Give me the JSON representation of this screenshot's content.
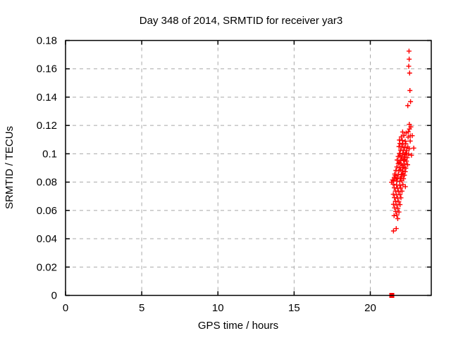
{
  "chart_data": {
    "type": "scatter",
    "title": "Day 348 of 2014, SRMTID for receiver yar3",
    "xlabel": "GPS time / hours",
    "ylabel": "SRMTID / TECUs",
    "xlim": [
      0,
      24
    ],
    "ylim": [
      0,
      0.18
    ],
    "x_tick_values": [
      0,
      5,
      10,
      15,
      20
    ],
    "x_tick_labels": [
      "0",
      "5",
      "10",
      "15",
      "20"
    ],
    "y_tick_values": [
      0,
      0.02,
      0.04,
      0.06,
      0.08,
      0.1,
      0.12,
      0.14,
      0.16,
      0.18
    ],
    "y_tick_labels": [
      "0",
      "0.02",
      "0.04",
      "0.06",
      "0.08",
      "0.1",
      "0.12",
      "0.14",
      "0.16",
      "0.18"
    ],
    "grid": true,
    "grid_style": "dashed",
    "grid_color": "#a8a8a8",
    "border_color": "#000000",
    "marker_color": "#ff0000",
    "legend": "none",
    "series": [
      {
        "name": "srmtid-points",
        "marker": "plus",
        "color": "#ff0000",
        "points": [
          [
            22.54,
            0.1725
          ],
          [
            22.55,
            0.1668
          ],
          [
            22.52,
            0.1618
          ],
          [
            22.58,
            0.157
          ],
          [
            22.6,
            0.1447
          ],
          [
            22.64,
            0.1368
          ],
          [
            22.46,
            0.134
          ],
          [
            22.56,
            0.1208
          ],
          [
            22.66,
            0.119
          ],
          [
            22.57,
            0.1175
          ],
          [
            22.12,
            0.1154
          ],
          [
            22.35,
            0.1147
          ],
          [
            22.49,
            0.1155
          ],
          [
            22.21,
            0.113
          ],
          [
            22.03,
            0.1119
          ],
          [
            22.62,
            0.1127
          ],
          [
            22.75,
            0.1128
          ],
          [
            22.48,
            0.1118
          ],
          [
            21.91,
            0.1097
          ],
          [
            22.1,
            0.1094
          ],
          [
            22.29,
            0.1089
          ],
          [
            22.62,
            0.109
          ],
          [
            21.94,
            0.1073
          ],
          [
            22.14,
            0.1068
          ],
          [
            22.33,
            0.1071
          ],
          [
            21.88,
            0.1051
          ],
          [
            22.06,
            0.1048
          ],
          [
            22.26,
            0.1044
          ],
          [
            22.46,
            0.1048
          ],
          [
            22.85,
            0.104
          ],
          [
            22.55,
            0.1035
          ],
          [
            21.98,
            0.1026
          ],
          [
            22.18,
            0.1023
          ],
          [
            22.37,
            0.1023
          ],
          [
            21.91,
            0.1003
          ],
          [
            22.12,
            0.1
          ],
          [
            22.32,
            0.1001
          ],
          [
            22.51,
            0.0998
          ],
          [
            22.4,
            0.1
          ],
          [
            22.7,
            0.099
          ],
          [
            21.95,
            0.099
          ],
          [
            22.25,
            0.0995
          ],
          [
            21.83,
            0.0981
          ],
          [
            22.03,
            0.0976
          ],
          [
            22.21,
            0.0978
          ],
          [
            22.42,
            0.0973
          ],
          [
            21.76,
            0.0956
          ],
          [
            21.98,
            0.0951
          ],
          [
            22.18,
            0.0953
          ],
          [
            22.37,
            0.0948
          ],
          [
            22.08,
            0.0965
          ],
          [
            22.28,
            0.096
          ],
          [
            21.83,
            0.0931
          ],
          [
            22.03,
            0.0927
          ],
          [
            22.24,
            0.0928
          ],
          [
            22.45,
            0.0923
          ],
          [
            21.9,
            0.0938
          ],
          [
            21.74,
            0.0907
          ],
          [
            21.94,
            0.0902
          ],
          [
            22.14,
            0.0903
          ],
          [
            22.33,
            0.0898
          ],
          [
            22.22,
            0.0905
          ],
          [
            22.12,
            0.0918
          ],
          [
            21.68,
            0.0882
          ],
          [
            21.88,
            0.0879
          ],
          [
            22.1,
            0.0879
          ],
          [
            22.29,
            0.0874
          ],
          [
            21.99,
            0.0888
          ],
          [
            21.6,
            0.0857
          ],
          [
            21.83,
            0.0852
          ],
          [
            22.03,
            0.0854
          ],
          [
            22.24,
            0.0849
          ],
          [
            22.15,
            0.086
          ],
          [
            21.63,
            0.0845
          ],
          [
            21.57,
            0.0832
          ],
          [
            21.78,
            0.0829
          ],
          [
            21.98,
            0.0827
          ],
          [
            22.18,
            0.0824
          ],
          [
            22.05,
            0.0838
          ],
          [
            21.54,
            0.0811
          ],
          [
            21.74,
            0.0807
          ],
          [
            21.94,
            0.0806
          ],
          [
            21.39,
            0.0799
          ],
          [
            22.07,
            0.0809
          ],
          [
            21.46,
            0.0815
          ],
          [
            21.7,
            0.0822
          ],
          [
            21.5,
            0.0785
          ],
          [
            21.72,
            0.078
          ],
          [
            21.93,
            0.0778
          ],
          [
            22.14,
            0.0782
          ],
          [
            22.3,
            0.0768
          ],
          [
            21.57,
            0.076
          ],
          [
            21.79,
            0.0756
          ],
          [
            22.0,
            0.0758
          ],
          [
            21.65,
            0.0737
          ],
          [
            21.86,
            0.0733
          ],
          [
            22.08,
            0.0736
          ],
          [
            21.51,
            0.0714
          ],
          [
            21.73,
            0.071
          ],
          [
            21.95,
            0.0712
          ],
          [
            21.58,
            0.069
          ],
          [
            21.8,
            0.0686
          ],
          [
            22.01,
            0.0689
          ],
          [
            21.65,
            0.0665
          ],
          [
            21.87,
            0.0661
          ],
          [
            21.52,
            0.0643
          ],
          [
            21.74,
            0.0639
          ],
          [
            21.95,
            0.0641
          ],
          [
            21.59,
            0.0618
          ],
          [
            21.81,
            0.0614
          ],
          [
            21.67,
            0.0592
          ],
          [
            21.88,
            0.0589
          ],
          [
            21.74,
            0.0567
          ],
          [
            21.56,
            0.0563
          ],
          [
            21.8,
            0.0542
          ],
          [
            21.52,
            0.0455
          ],
          [
            21.7,
            0.0472
          ]
        ]
      },
      {
        "name": "zero-flag",
        "marker": "square",
        "color": "#ff0000",
        "points": [
          [
            21.41,
            0.0
          ]
        ]
      }
    ]
  }
}
